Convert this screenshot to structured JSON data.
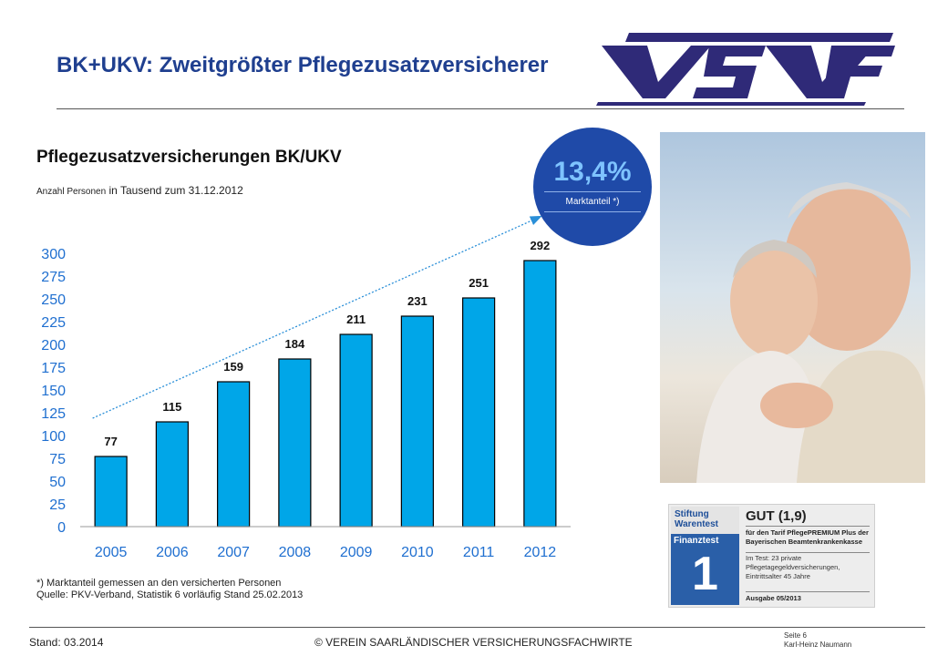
{
  "header": {
    "title": "BK+UKV: Zweitgrößter Pflegezusatzversicherer",
    "logo_text": "VSVF"
  },
  "chart_data": {
    "type": "bar",
    "title": "Pflegezusatzversicherungen BK/UKV",
    "subtitle_small": "Anzahl Personen",
    "subtitle": "in Tausend zum 31.12.2012",
    "categories": [
      "2005",
      "2006",
      "2007",
      "2008",
      "2009",
      "2010",
      "2011",
      "2012"
    ],
    "values": [
      77,
      115,
      159,
      184,
      211,
      231,
      251,
      292
    ],
    "ylim": [
      0,
      300
    ],
    "yticks": [
      "0",
      "25",
      "50",
      "75",
      "100",
      "125",
      "150",
      "175",
      "200",
      "225",
      "250",
      "275",
      "300"
    ],
    "grid": false,
    "trend_arrow": true,
    "bar_color": "#00a6e8",
    "axis_tick_color": "#1f6fd0"
  },
  "badge": {
    "value": "13,4%",
    "label": "Marktanteil *)"
  },
  "test_seal": {
    "brand_line1": "Stiftung",
    "brand_line2": "Warentest",
    "magazine": "Finanztest",
    "big_number": "1",
    "grade": "GUT (1,9)",
    "text1": "für den Tarif PflegePREMIUM Plus der Bayerischen Beamtenkrankenkasse",
    "text2": "Im Test: 23 private Pflegetagegeldversicherungen, Eintrittsalter 45 Jahre",
    "issue": "Ausgabe 05/2013"
  },
  "footnotes": {
    "line1": "*) Marktanteil gemessen an den versicherten Personen",
    "line2": "Quelle: PKV-Verband, Statistik 6 vorläufig Stand 25.02.2013"
  },
  "footer": {
    "date": "Stand: 03.2014",
    "copyright": "© VEREIN SAARLÄNDISCHER VERSICHERUNGSFACHWIRTE",
    "page": "Seite 6",
    "author": "Karl-Heinz Naumann"
  }
}
